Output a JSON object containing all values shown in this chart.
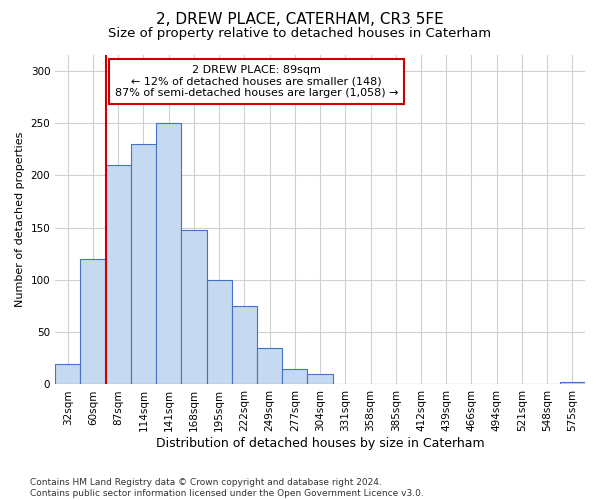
{
  "title": "2, DREW PLACE, CATERHAM, CR3 5FE",
  "subtitle": "Size of property relative to detached houses in Caterham",
  "xlabel": "Distribution of detached houses by size in Caterham",
  "ylabel": "Number of detached properties",
  "categories": [
    "32sqm",
    "60sqm",
    "87sqm",
    "114sqm",
    "141sqm",
    "168sqm",
    "195sqm",
    "222sqm",
    "249sqm",
    "277sqm",
    "304sqm",
    "331sqm",
    "358sqm",
    "385sqm",
    "412sqm",
    "439sqm",
    "466sqm",
    "494sqm",
    "521sqm",
    "548sqm",
    "575sqm"
  ],
  "values": [
    20,
    120,
    210,
    230,
    250,
    148,
    100,
    75,
    35,
    15,
    10,
    0,
    0,
    0,
    0,
    0,
    0,
    0,
    0,
    0,
    2
  ],
  "bar_color": "#c5d9f0",
  "bar_edge_color": "#4472c4",
  "red_line_index": 2,
  "annotation_text": "2 DREW PLACE: 89sqm\n← 12% of detached houses are smaller (148)\n87% of semi-detached houses are larger (1,058) →",
  "annotation_box_color": "#ffffff",
  "annotation_box_edge_color": "#cc0000",
  "ylim": [
    0,
    315
  ],
  "yticks": [
    0,
    50,
    100,
    150,
    200,
    250,
    300
  ],
  "footer": "Contains HM Land Registry data © Crown copyright and database right 2024.\nContains public sector information licensed under the Open Government Licence v3.0.",
  "background_color": "#ffffff",
  "grid_color": "#d0d0d0",
  "title_fontsize": 11,
  "subtitle_fontsize": 9.5,
  "xlabel_fontsize": 9,
  "ylabel_fontsize": 8,
  "tick_fontsize": 7.5,
  "footer_fontsize": 6.5,
  "annotation_fontsize": 8
}
